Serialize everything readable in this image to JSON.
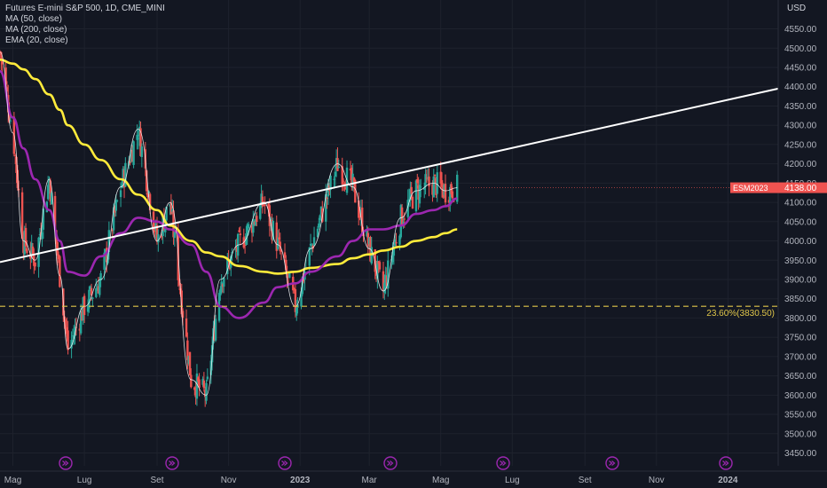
{
  "legend": {
    "symbol_line": "Futures E-mini S&P 500, 1D, CME_MINI",
    "ma50_label": "MA (50, close)",
    "ma200_label": "MA (200, close)",
    "ema20_label": "EMA (20, close)"
  },
  "price_axis": {
    "currency": "USD",
    "ticks": [
      "4550.00",
      "4500.00",
      "4450.00",
      "4400.00",
      "4350.00",
      "4300.00",
      "4250.00",
      "4200.00",
      "4150.00",
      "4100.00",
      "4050.00",
      "4000.00",
      "3950.00",
      "3900.00",
      "3850.00",
      "3800.00",
      "3750.00",
      "3700.00",
      "3650.00",
      "3600.00",
      "3550.00",
      "3500.00",
      "3450.00"
    ]
  },
  "time_axis": {
    "labels": [
      "Mag",
      "Lug",
      "Set",
      "Nov",
      "2023",
      "Mar",
      "Mag",
      "Lug",
      "Set",
      "Nov",
      "2024"
    ]
  },
  "fib_label": "23.60%(3830.50)",
  "last_price": {
    "symbol": "ESM2023",
    "value": "4138.00"
  },
  "event_icon": "dividend-event-icon",
  "colors": {
    "background": "#131722",
    "up": "#26a69a",
    "down": "#ef5350",
    "ma50": "#9c27b0",
    "ma200": "#ffeb3b",
    "ema20": "#ffffff",
    "trendline": "#ffffff",
    "fib": "#e0c64a",
    "event": "#9c27b0"
  },
  "chart_data": {
    "type": "candlestick",
    "title": "Futures E-mini S&P 500, 1D, CME_MINI",
    "ylim": [
      3430,
      4590
    ],
    "x": [
      "2022-04-20",
      "2022-05-01",
      "2022-05-10",
      "2022-05-20",
      "2022-06-01",
      "2022-06-10",
      "2022-06-17",
      "2022-07-01",
      "2022-07-15",
      "2022-08-01",
      "2022-08-16",
      "2022-09-01",
      "2022-09-12",
      "2022-09-30",
      "2022-10-13",
      "2022-10-25",
      "2022-11-10",
      "2022-12-01",
      "2022-12-13",
      "2022-12-28",
      "2023-01-10",
      "2023-02-02",
      "2023-02-15",
      "2023-03-01",
      "2023-03-13",
      "2023-03-28",
      "2023-04-10",
      "2023-04-25",
      "2023-05-05",
      "2023-05-15"
    ],
    "close": [
      4490,
      4280,
      4000,
      3950,
      4160,
      3910,
      3720,
      3830,
      3900,
      4140,
      4290,
      4000,
      4100,
      3640,
      3600,
      3900,
      3990,
      4100,
      3990,
      3830,
      3980,
      4200,
      4140,
      3980,
      3870,
      4060,
      4130,
      4150,
      4130,
      4138
    ],
    "ma50": [
      4440,
      4320,
      4240,
      4160,
      4080,
      4000,
      3920,
      3910,
      3960,
      4020,
      4060,
      4050,
      4030,
      3990,
      3920,
      3830,
      3800,
      3840,
      3880,
      3890,
      3920,
      3960,
      4000,
      4030,
      4030,
      4040,
      4070,
      4080,
      4090,
      4110
    ],
    "ma200": [
      4470,
      4460,
      4445,
      4420,
      4380,
      4340,
      4300,
      4250,
      4210,
      4160,
      4120,
      4080,
      4040,
      4000,
      3970,
      3960,
      3935,
      3920,
      3915,
      3920,
      3930,
      3940,
      3955,
      3965,
      3975,
      3985,
      4000,
      4010,
      4020,
      4030
    ],
    "trendline": {
      "x": [
        "2022-04-20",
        "2023-12-31"
      ],
      "y": [
        3945,
        4395
      ]
    },
    "fib_level": {
      "label": "23.60%",
      "value": 3830.5
    },
    "last_price": 4138,
    "legend": [
      "MA (50, close)",
      "MA (200, close)",
      "EMA (20, close)"
    ]
  }
}
